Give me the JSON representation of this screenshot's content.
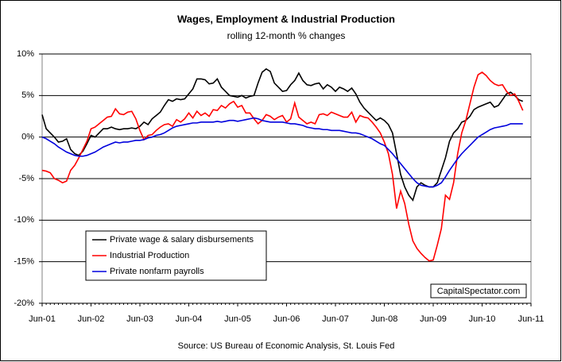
{
  "chart_data": {
    "type": "line",
    "title": "Wages, Employment & Industrial Production",
    "subtitle": "rolling 12-month % changes",
    "source": "Source: US Bureau of Economic Analysis, St. Louis Fed",
    "watermark": "CapitalSpectator.com",
    "categories": [
      "Jun-01",
      null,
      null,
      null,
      null,
      null,
      null,
      null,
      null,
      null,
      null,
      null,
      "Jun-02",
      null,
      null,
      null,
      null,
      null,
      null,
      null,
      null,
      null,
      null,
      null,
      "Jun-03",
      null,
      null,
      null,
      null,
      null,
      null,
      null,
      null,
      null,
      null,
      null,
      "Jun-04",
      null,
      null,
      null,
      null,
      null,
      null,
      null,
      null,
      null,
      null,
      null,
      "Jun-05",
      null,
      null,
      null,
      null,
      null,
      null,
      null,
      null,
      null,
      null,
      null,
      "Jun-06",
      null,
      null,
      null,
      null,
      null,
      null,
      null,
      null,
      null,
      null,
      null,
      "Jun-07",
      null,
      null,
      null,
      null,
      null,
      null,
      null,
      null,
      null,
      null,
      null,
      "Jun-08",
      null,
      null,
      null,
      null,
      null,
      null,
      null,
      null,
      null,
      null,
      null,
      "Jun-09",
      null,
      null,
      null,
      null,
      null,
      null,
      null,
      null,
      null,
      null,
      null,
      "Jun-10",
      null,
      null,
      null,
      null,
      null,
      null,
      null,
      null,
      null,
      null,
      null,
      "Jun-11"
    ],
    "series": [
      {
        "name": "Private wage & salary disbursements",
        "color": "#000000",
        "values": [
          2.7,
          1.0,
          0.5,
          0,
          -0.6,
          -0.5,
          -0.2,
          -1.5,
          -2.0,
          -2.2,
          -1.7,
          -0.8,
          0.2,
          0.0,
          0.5,
          1.0,
          1.0,
          1.2,
          1.0,
          0.9,
          1.0,
          1.0,
          1.1,
          1.0,
          1.3,
          1.8,
          1.5,
          2.2,
          2.6,
          3.0,
          3.8,
          4.5,
          4.3,
          4.6,
          4.5,
          4.6,
          5.2,
          5.8,
          7.0,
          7.0,
          6.9,
          6.4,
          6.5,
          7.0,
          6.0,
          5.5,
          5.0,
          4.9,
          4.8,
          5.0,
          4.7,
          4.9,
          5.0,
          6.5,
          7.8,
          8.2,
          7.9,
          6.5,
          6.0,
          5.5,
          5.6,
          6.3,
          6.8,
          7.7,
          6.8,
          6.3,
          6.2,
          6.4,
          6.5,
          5.8,
          6.3,
          6.0,
          5.5,
          6.0,
          5.8,
          5.5,
          5.9,
          5.2,
          4.2,
          3.5,
          3.0,
          2.5,
          2.0,
          2.3,
          2.0,
          1.5,
          0.5,
          -2.0,
          -4.5,
          -6.0,
          -7.0,
          -7.6,
          -6.0,
          -5.5,
          -5.8,
          -6.0,
          -6.0,
          -5.5,
          -4.0,
          -2.5,
          -0.5,
          0.5,
          1.0,
          1.8,
          2.0,
          2.5,
          3.3,
          3.6,
          3.8,
          4.0,
          4.2,
          3.6,
          3.8,
          4.5,
          5.2,
          5.4,
          5.0,
          4.5,
          4.3,
          null,
          null
        ]
      },
      {
        "name": "Industrial Production",
        "color": "#ff0000",
        "values": [
          -4.0,
          -4.1,
          -4.3,
          -5.0,
          -5.2,
          -5.5,
          -5.3,
          -4.0,
          -3.4,
          -2.5,
          -1.5,
          -0.5,
          1.0,
          1.2,
          1.6,
          2.0,
          2.4,
          2.5,
          3.4,
          2.8,
          2.7,
          3.0,
          3.1,
          2.2,
          0.8,
          -0.3,
          0.2,
          0.3,
          0.8,
          1.2,
          1.5,
          1.6,
          1.3,
          2.1,
          1.8,
          2.2,
          2.9,
          2.3,
          3.1,
          2.6,
          2.9,
          2.5,
          3.3,
          3.2,
          3.8,
          3.5,
          4.0,
          4.3,
          3.6,
          3.8,
          2.9,
          2.9,
          2.2,
          1.6,
          2.0,
          2.7,
          2.5,
          2.1,
          2.4,
          2.6,
          1.8,
          2.2,
          4.1,
          2.4,
          2.0,
          1.6,
          1.8,
          1.6,
          2.7,
          2.8,
          2.6,
          3.0,
          2.8,
          2.6,
          2.4,
          2.4,
          3.0,
          1.8,
          2.6,
          2.4,
          2.3,
          1.8,
          1.2,
          0.5,
          -0.6,
          -2.0,
          -4.5,
          -8.6,
          -6.5,
          -8.0,
          -10.5,
          -12.5,
          -13.4,
          -14.0,
          -14.5,
          -14.9,
          -14.8,
          -13.0,
          -11.0,
          -7.0,
          -7.5,
          -5.5,
          -2.0,
          0.5,
          2.0,
          4.0,
          6.0,
          7.5,
          7.8,
          7.4,
          6.8,
          6.4,
          6.2,
          6.3,
          5.5,
          5.0,
          5.2,
          4.3,
          3.2,
          null,
          null
        ]
      },
      {
        "name": "Private nonfarm payrolls",
        "color": "#0000dd",
        "values": [
          0,
          -0.2,
          -0.5,
          -0.8,
          -1.2,
          -1.5,
          -1.8,
          -2.0,
          -2.2,
          -2.3,
          -2.3,
          -2.2,
          -2.0,
          -1.8,
          -1.5,
          -1.2,
          -1.0,
          -0.8,
          -0.6,
          -0.7,
          -0.6,
          -0.6,
          -0.5,
          -0.4,
          -0.4,
          -0.3,
          -0.1,
          0.0,
          0.2,
          0.3,
          0.5,
          0.8,
          1.1,
          1.3,
          1.4,
          1.5,
          1.6,
          1.7,
          1.7,
          1.8,
          1.8,
          1.8,
          1.8,
          1.9,
          1.8,
          1.9,
          2.0,
          2.0,
          1.9,
          2.0,
          2.1,
          2.2,
          2.3,
          2.2,
          2.0,
          1.9,
          1.8,
          1.8,
          1.8,
          1.8,
          1.7,
          1.6,
          1.6,
          1.5,
          1.4,
          1.2,
          1.1,
          1.0,
          1.0,
          0.9,
          0.9,
          0.8,
          0.8,
          0.8,
          0.7,
          0.6,
          0.5,
          0.5,
          0.4,
          0.2,
          0,
          -0.2,
          -0.5,
          -0.8,
          -1.0,
          -1.5,
          -2.0,
          -2.6,
          -3.2,
          -3.8,
          -4.4,
          -5.0,
          -5.5,
          -5.8,
          -5.9,
          -6.0,
          -6.0,
          -5.8,
          -5.5,
          -4.8,
          -4.0,
          -3.3,
          -2.6,
          -2.0,
          -1.5,
          -1.0,
          -0.5,
          0,
          0.3,
          0.6,
          0.9,
          1.1,
          1.2,
          1.3,
          1.4,
          1.6,
          1.6,
          1.6,
          1.6,
          null,
          null
        ]
      }
    ],
    "ylim": [
      -20,
      10
    ],
    "yticks": [
      {
        "value": -20,
        "label": "-20%"
      },
      {
        "value": -15,
        "label": "-15%"
      },
      {
        "value": -10,
        "label": "-10%"
      },
      {
        "value": -5,
        "label": "-5%"
      },
      {
        "value": 0,
        "label": "0%"
      },
      {
        "value": 5,
        "label": "5%"
      },
      {
        "value": 10,
        "label": "10%"
      }
    ],
    "grid": true,
    "legend": "lower left"
  }
}
